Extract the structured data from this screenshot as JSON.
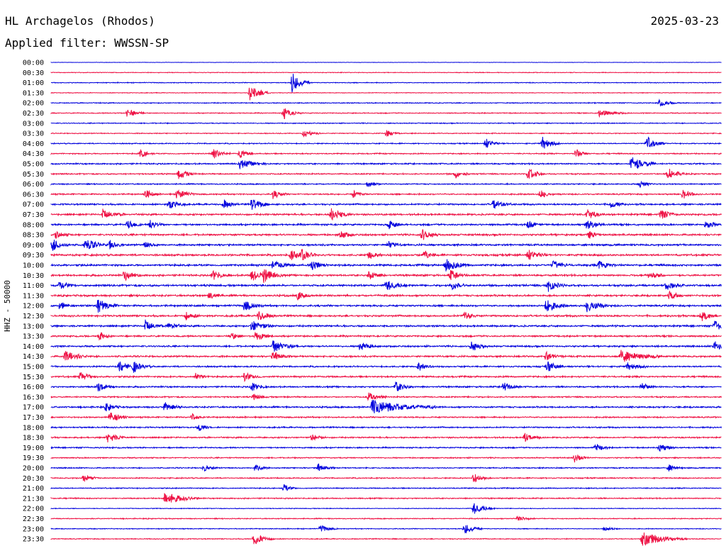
{
  "header": {
    "station": "HL Archagelos (Rhodos)",
    "date": "2025-03-23",
    "filter": "Applied filter: WWSSN-SP"
  },
  "chart_data": {
    "type": "line",
    "description_free": true,
    "ylabel": "HHZ - 50000",
    "row_labels": [
      "00:00",
      "00:30",
      "01:00",
      "01:30",
      "02:00",
      "02:30",
      "03:00",
      "03:30",
      "04:00",
      "04:30",
      "05:00",
      "05:30",
      "06:00",
      "06:30",
      "07:00",
      "07:30",
      "08:00",
      "08:30",
      "09:00",
      "09:30",
      "10:00",
      "10:30",
      "11:00",
      "11:30",
      "12:00",
      "12:30",
      "13:00",
      "13:30",
      "14:00",
      "14:30",
      "15:00",
      "15:30",
      "16:00",
      "16:30",
      "17:00",
      "17:30",
      "18:00",
      "18:30",
      "19:00",
      "19:30",
      "20:00",
      "20:30",
      "21:00",
      "21:30",
      "22:00",
      "22:30",
      "23:00",
      "23:30"
    ],
    "colors": {
      "even_rows": "#0000dd",
      "odd_rows": "#ee1144"
    },
    "row_noise_level": [
      0.15,
      0.3,
      0.35,
      0.3,
      0.4,
      0.4,
      0.4,
      0.4,
      0.45,
      0.5,
      0.6,
      0.55,
      0.5,
      0.6,
      0.7,
      0.75,
      0.75,
      0.8,
      0.8,
      0.85,
      0.85,
      0.8,
      0.85,
      0.8,
      0.8,
      0.8,
      0.75,
      0.7,
      0.7,
      0.75,
      0.65,
      0.7,
      0.65,
      0.6,
      0.7,
      0.6,
      0.6,
      0.6,
      0.55,
      0.5,
      0.5,
      0.5,
      0.45,
      0.5,
      0.3,
      0.4,
      0.35,
      0.4
    ]
  }
}
